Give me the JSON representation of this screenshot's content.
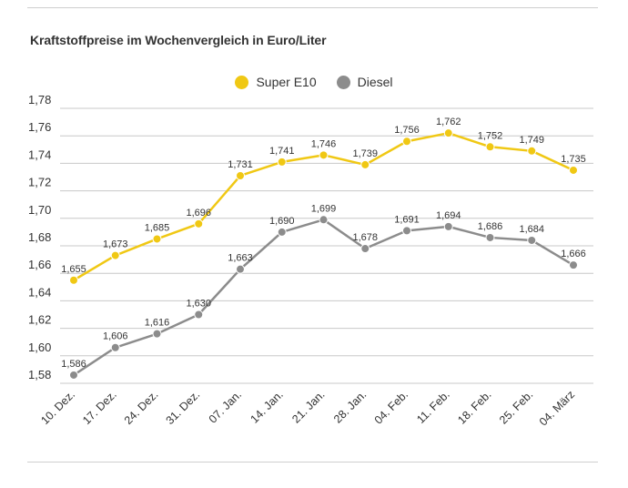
{
  "title": "Kraftstoffpreise im Wochenvergleich in Euro/Liter",
  "colors": {
    "super": "#f0c814",
    "diesel": "#8c8c8c",
    "grid": "#c8c8c8",
    "text": "#333333"
  },
  "chart_data": {
    "type": "line",
    "title": "Kraftstoffpreise im Wochenvergleich in Euro/Liter",
    "categories": [
      "10. Dez.",
      "17. Dez.",
      "24. Dez.",
      "31. Dez.",
      "07. Jan.",
      "14. Jan.",
      "21. Jan.",
      "28. Jan.",
      "04. Feb.",
      "11. Feb.",
      "18. Feb.",
      "25. Feb.",
      "04. März"
    ],
    "series": [
      {
        "name": "Super E10",
        "color": "#f0c814",
        "values": [
          1.655,
          1.673,
          1.685,
          1.696,
          1.731,
          1.741,
          1.746,
          1.739,
          1.756,
          1.762,
          1.752,
          1.749,
          1.735
        ],
        "labels": [
          "1,655",
          "1,673",
          "1,685",
          "1,696",
          "1,731",
          "1,741",
          "1,746",
          "1,739",
          "1,756",
          "1,762",
          "1,752",
          "1,749",
          "1,735"
        ]
      },
      {
        "name": "Diesel",
        "color": "#8c8c8c",
        "values": [
          1.586,
          1.606,
          1.616,
          1.63,
          1.663,
          1.69,
          1.699,
          1.678,
          1.691,
          1.694,
          1.686,
          1.684,
          1.666
        ],
        "labels": [
          "1,586",
          "1,606",
          "1,616",
          "1,630",
          "1,663",
          "1,690",
          "1,699",
          "1,678",
          "1,691",
          "1,694",
          "1,686",
          "1,684",
          "1,666"
        ]
      }
    ],
    "yticks": [
      1.58,
      1.6,
      1.62,
      1.64,
      1.66,
      1.68,
      1.7,
      1.72,
      1.74,
      1.76,
      1.78
    ],
    "ytick_labels": [
      "1,58",
      "1,60",
      "1,62",
      "1,64",
      "1,66",
      "1,68",
      "1,70",
      "1,72",
      "1,74",
      "1,76",
      "1,78"
    ],
    "ylim": [
      1.58,
      1.78
    ],
    "grid": true,
    "legend": "top-center"
  }
}
